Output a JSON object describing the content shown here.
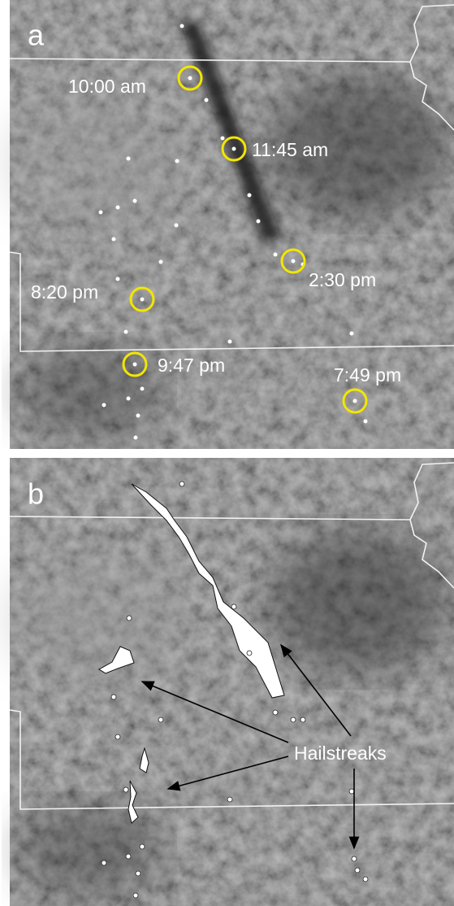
{
  "panels": [
    {
      "label": "a",
      "annotations": [
        "10:00 am",
        "11:45 am",
        "2:30 pm",
        "8:20 pm",
        "9:47 pm",
        "7:49 pm"
      ]
    },
    {
      "label": "b",
      "annotations": [
        "Hailstreaks"
      ]
    }
  ]
}
